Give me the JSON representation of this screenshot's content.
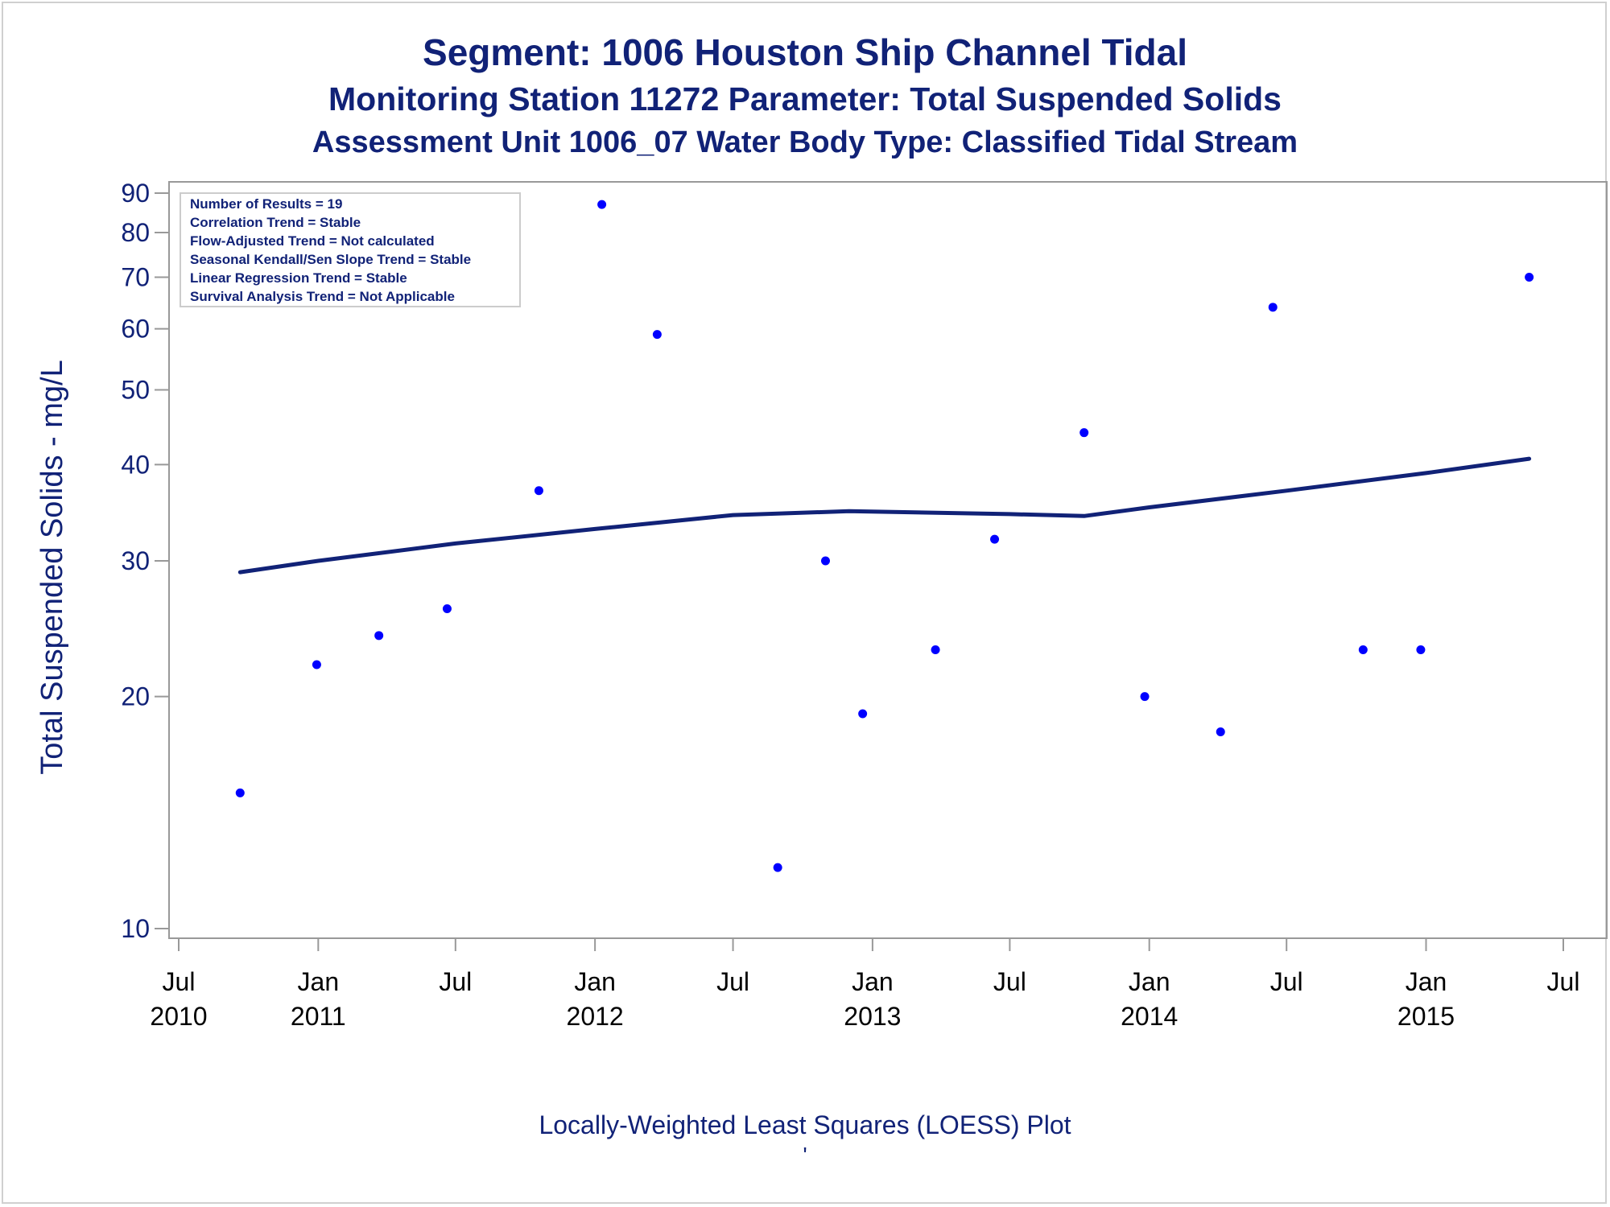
{
  "titles": {
    "line1": "Segment: 1006  Houston Ship Channel Tidal",
    "line2": "Monitoring Station 11272 Parameter: Total Suspended Solids",
    "line3": "Assessment Unit 1006_07   Water Body Type: Classified Tidal Stream"
  },
  "stats_box": [
    "Number of Results = 19",
    "Correlation Trend = Stable",
    "Flow-Adjusted Trend = Not calculated",
    "Seasonal Kendall/Sen Slope Trend = Stable",
    "Linear Regression Trend = Stable",
    "Survival Analysis Trend = Not Applicable"
  ],
  "footnote": "Locally-Weighted Least Squares (LOESS) Plot",
  "footnote_mark": "'",
  "colors": {
    "text": "#112277",
    "points": "#0000ff",
    "loess": "#112277",
    "axis": "#999999"
  },
  "chart_data": {
    "type": "scatter",
    "title": "Segment: 1006  Houston Ship Channel Tidal",
    "xlabel": "",
    "ylabel": "Total Suspended Solids - mg/L",
    "y_scale": "log",
    "ylim": [
      10,
      90
    ],
    "xlim": [
      "2010-07-01",
      "2015-07-01"
    ],
    "y_ticks": [
      10,
      20,
      30,
      40,
      50,
      60,
      70,
      80,
      90
    ],
    "x_ticks": [
      {
        "date": "2010-07-01",
        "month": "Jul",
        "year": "2010"
      },
      {
        "date": "2011-01-01",
        "month": "Jan",
        "year": "2011"
      },
      {
        "date": "2011-07-01",
        "month": "Jul",
        "year": ""
      },
      {
        "date": "2012-01-01",
        "month": "Jan",
        "year": "2012"
      },
      {
        "date": "2012-07-01",
        "month": "Jul",
        "year": ""
      },
      {
        "date": "2013-01-01",
        "month": "Jan",
        "year": "2013"
      },
      {
        "date": "2013-07-01",
        "month": "Jul",
        "year": ""
      },
      {
        "date": "2014-01-01",
        "month": "Jan",
        "year": "2014"
      },
      {
        "date": "2014-07-01",
        "month": "Jul",
        "year": ""
      },
      {
        "date": "2015-01-01",
        "month": "Jan",
        "year": "2015"
      },
      {
        "date": "2015-07-01",
        "month": "Jul",
        "year": ""
      }
    ],
    "grid": false,
    "legend": "top-left",
    "points": [
      {
        "x": "2010-09-20",
        "y": 15
      },
      {
        "x": "2010-12-30",
        "y": 22
      },
      {
        "x": "2011-03-22",
        "y": 24
      },
      {
        "x": "2011-06-20",
        "y": 26
      },
      {
        "x": "2011-10-19",
        "y": 37
      },
      {
        "x": "2012-01-10",
        "y": 87
      },
      {
        "x": "2012-03-23",
        "y": 59
      },
      {
        "x": "2012-08-29",
        "y": 12
      },
      {
        "x": "2012-10-31",
        "y": 30
      },
      {
        "x": "2012-12-19",
        "y": 19
      },
      {
        "x": "2013-03-25",
        "y": 23
      },
      {
        "x": "2013-06-11",
        "y": 32
      },
      {
        "x": "2013-10-07",
        "y": 44
      },
      {
        "x": "2013-12-26",
        "y": 20
      },
      {
        "x": "2014-04-05",
        "y": 18
      },
      {
        "x": "2014-06-13",
        "y": 64
      },
      {
        "x": "2014-10-10",
        "y": 23
      },
      {
        "x": "2014-12-25",
        "y": 23
      },
      {
        "x": "2015-05-17",
        "y": 70
      }
    ],
    "loess": [
      {
        "x": "2010-09-20",
        "y": 29.0
      },
      {
        "x": "2011-01-01",
        "y": 30.0
      },
      {
        "x": "2011-07-01",
        "y": 31.6
      },
      {
        "x": "2012-01-01",
        "y": 33.0
      },
      {
        "x": "2012-07-01",
        "y": 34.4
      },
      {
        "x": "2012-12-01",
        "y": 34.8
      },
      {
        "x": "2013-07-01",
        "y": 34.5
      },
      {
        "x": "2013-10-07",
        "y": 34.3
      },
      {
        "x": "2014-01-01",
        "y": 35.2
      },
      {
        "x": "2014-07-01",
        "y": 37.0
      },
      {
        "x": "2015-01-01",
        "y": 39.0
      },
      {
        "x": "2015-05-17",
        "y": 40.7
      }
    ]
  }
}
